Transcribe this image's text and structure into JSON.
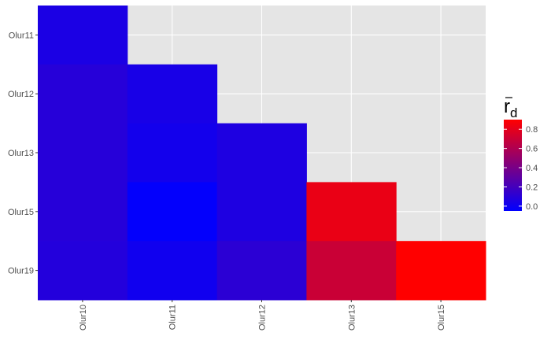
{
  "chart_data": {
    "type": "heatmap",
    "x_categories": [
      "Olur10",
      "Olur11",
      "Olur12",
      "Olur13",
      "Olur15"
    ],
    "y_categories": [
      "Olur11",
      "Olur12",
      "Olur13",
      "Olur15",
      "Olur19"
    ],
    "cells": [
      {
        "x": "Olur10",
        "y": "Olur11",
        "value": 0.05
      },
      {
        "x": "Olur10",
        "y": "Olur12",
        "value": 0.09
      },
      {
        "x": "Olur11",
        "y": "Olur12",
        "value": 0.04
      },
      {
        "x": "Olur10",
        "y": "Olur13",
        "value": 0.09
      },
      {
        "x": "Olur11",
        "y": "Olur13",
        "value": 0.02
      },
      {
        "x": "Olur12",
        "y": "Olur13",
        "value": 0.06
      },
      {
        "x": "Olur10",
        "y": "Olur15",
        "value": 0.09
      },
      {
        "x": "Olur11",
        "y": "Olur15",
        "value": -0.04
      },
      {
        "x": "Olur12",
        "y": "Olur15",
        "value": 0.06
      },
      {
        "x": "Olur13",
        "y": "Olur15",
        "value": 0.82
      },
      {
        "x": "Olur10",
        "y": "Olur19",
        "value": 0.08
      },
      {
        "x": "Olur11",
        "y": "Olur19",
        "value": 0.01
      },
      {
        "x": "Olur12",
        "y": "Olur19",
        "value": 0.11
      },
      {
        "x": "Olur13",
        "y": "Olur19",
        "value": 0.7
      },
      {
        "x": "Olur15",
        "y": "Olur19",
        "value": 0.9
      }
    ],
    "legend": {
      "title_main": "r",
      "title_sub": "d",
      "title_overbar": true,
      "ticks": [
        "0.0",
        "0.2",
        "0.4",
        "0.6",
        "0.8"
      ],
      "tick_values": [
        0.0,
        0.2,
        0.4,
        0.6,
        0.8
      ],
      "range": [
        -0.05,
        0.9
      ],
      "low_color": "#0000ff",
      "high_color": "#ff0000",
      "placement": "right"
    },
    "xlabel": "",
    "ylabel": "",
    "grid": true,
    "panel_background": "#e5e5e5",
    "gridline_color": "#ffffff",
    "x_tick_rotation": -90
  }
}
